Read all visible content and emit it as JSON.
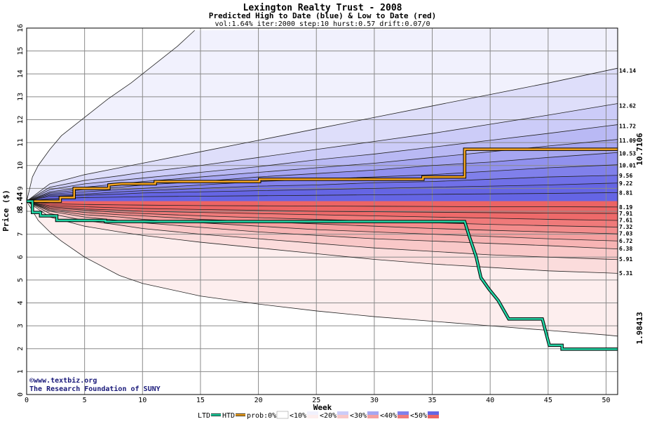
{
  "chart_data": {
    "type": "area",
    "title": "Lexington Realty Trust - 2008",
    "subtitle": "Predicted High to Date (blue) &  Low to Date (red)",
    "params": "vol:1.64% iter:2000 step:10 hurst:0.57 drift:0.07/0",
    "xlabel": "Week",
    "ylabel": "Price ($)",
    "xlim": [
      0,
      51
    ],
    "ylim": [
      0,
      16
    ],
    "xticks": [
      0,
      5,
      10,
      15,
      20,
      25,
      30,
      35,
      40,
      45,
      50
    ],
    "yticks": [
      0,
      1,
      2,
      3,
      4,
      5,
      6,
      7,
      8,
      9,
      10,
      11,
      12,
      13,
      14,
      15,
      16
    ],
    "grid": true,
    "start_price": 8.44,
    "start_label": "8.44",
    "weeks": [
      0,
      2,
      5,
      8,
      10,
      15,
      20,
      25,
      30,
      35,
      40,
      45,
      50
    ],
    "high_quantiles": [
      {
        "level": "14.14",
        "values": [
          8.44,
          9.2,
          9.6,
          9.9,
          10.1,
          10.6,
          11.1,
          11.6,
          12.1,
          12.6,
          13.1,
          13.6,
          14.14
        ]
      },
      {
        "level": "12.62",
        "values": [
          8.44,
          9.05,
          9.35,
          9.55,
          9.7,
          10.0,
          10.35,
          10.7,
          11.05,
          11.4,
          11.8,
          12.2,
          12.62
        ]
      },
      {
        "level": "11.72",
        "values": [
          8.44,
          8.95,
          9.2,
          9.35,
          9.45,
          9.7,
          9.95,
          10.25,
          10.5,
          10.8,
          11.1,
          11.4,
          11.72
        ]
      },
      {
        "level": "11.09",
        "values": [
          8.44,
          8.85,
          9.05,
          9.2,
          9.3,
          9.5,
          9.7,
          9.9,
          10.1,
          10.35,
          10.6,
          10.85,
          11.09
        ]
      },
      {
        "level": "10.53",
        "values": [
          8.44,
          8.8,
          8.95,
          9.05,
          9.15,
          9.3,
          9.5,
          9.65,
          9.8,
          10.0,
          10.15,
          10.35,
          10.53
        ]
      },
      {
        "level": "10.01",
        "values": [
          8.44,
          8.75,
          8.85,
          8.95,
          9.0,
          9.15,
          9.3,
          9.4,
          9.5,
          9.6,
          9.75,
          9.9,
          10.01
        ]
      },
      {
        "level": "9.56",
        "values": [
          8.44,
          8.7,
          8.75,
          8.85,
          8.9,
          9.0,
          9.1,
          9.15,
          9.25,
          9.3,
          9.4,
          9.5,
          9.56
        ]
      },
      {
        "level": "9.22",
        "values": [
          8.44,
          8.65,
          8.7,
          8.75,
          8.8,
          8.85,
          8.9,
          8.95,
          9.0,
          9.05,
          9.1,
          9.15,
          9.22
        ]
      },
      {
        "level": "8.81",
        "values": [
          8.44,
          8.55,
          8.6,
          8.62,
          8.64,
          8.66,
          8.68,
          8.7,
          8.72,
          8.74,
          8.76,
          8.78,
          8.81
        ]
      }
    ],
    "low_quantiles": [
      {
        "level": "8.19",
        "values": [
          8.44,
          8.33,
          8.3,
          8.28,
          8.27,
          8.25,
          8.24,
          8.23,
          8.22,
          8.21,
          8.2,
          8.2,
          8.19
        ]
      },
      {
        "level": "7.91",
        "values": [
          8.44,
          8.25,
          8.2,
          8.15,
          8.12,
          8.08,
          8.04,
          8.0,
          7.98,
          7.96,
          7.94,
          7.92,
          7.91
        ]
      },
      {
        "level": "7.61",
        "values": [
          8.44,
          8.2,
          8.1,
          8.05,
          8.0,
          7.95,
          7.9,
          7.85,
          7.8,
          7.75,
          7.7,
          7.65,
          7.61
        ]
      },
      {
        "level": "7.32",
        "values": [
          8.44,
          8.15,
          8.05,
          7.95,
          7.9,
          7.8,
          7.72,
          7.65,
          7.57,
          7.5,
          7.43,
          7.37,
          7.32
        ]
      },
      {
        "level": "7.03",
        "values": [
          8.44,
          8.1,
          7.95,
          7.85,
          7.8,
          7.65,
          7.55,
          7.45,
          7.35,
          7.25,
          7.17,
          7.1,
          7.03
        ]
      },
      {
        "level": "6.72",
        "values": [
          8.44,
          8.05,
          7.85,
          7.75,
          7.65,
          7.5,
          7.35,
          7.2,
          7.1,
          7.0,
          6.9,
          6.8,
          6.72
        ]
      },
      {
        "level": "6.38",
        "values": [
          8.44,
          8.0,
          7.75,
          7.6,
          7.5,
          7.3,
          7.1,
          6.95,
          6.8,
          6.7,
          6.6,
          6.5,
          6.38
        ]
      },
      {
        "level": "5.91",
        "values": [
          8.44,
          7.9,
          7.6,
          7.4,
          7.25,
          7.0,
          6.8,
          6.6,
          6.4,
          6.25,
          6.1,
          6.0,
          5.91
        ]
      },
      {
        "level": "5.31",
        "values": [
          8.44,
          7.75,
          7.35,
          7.1,
          6.95,
          6.65,
          6.4,
          6.15,
          5.9,
          5.7,
          5.55,
          5.4,
          5.31
        ]
      }
    ],
    "outer_high": {
      "weeks": [
        0,
        0.5,
        1,
        2,
        3,
        5,
        7,
        9,
        11,
        13,
        14.5
      ],
      "values": [
        8.44,
        9.5,
        10.0,
        10.7,
        11.3,
        12.1,
        12.9,
        13.6,
        14.4,
        15.2,
        15.9
      ]
    },
    "outer_low": {
      "weeks": [
        0,
        1,
        2,
        3,
        5,
        8,
        10,
        15,
        20,
        25,
        30,
        35,
        40,
        45,
        50,
        51
      ],
      "values": [
        8.44,
        7.6,
        7.1,
        6.7,
        6.0,
        5.2,
        4.85,
        4.3,
        3.95,
        3.65,
        3.4,
        3.2,
        3.0,
        2.8,
        2.6,
        2.55
      ]
    },
    "series": [
      {
        "name": "HTD",
        "color": "#f5a623",
        "x": [
          0,
          1,
          2,
          2.9,
          2.9,
          3.0,
          4.1,
          4.1,
          7.1,
          7.1,
          8.2,
          11.1,
          11.1,
          20.1,
          20.1,
          34.2,
          34.2,
          37.8,
          37.8,
          51
        ],
        "y": [
          8.44,
          8.44,
          8.44,
          8.44,
          8.6,
          8.6,
          8.6,
          9.0,
          9.0,
          9.15,
          9.2,
          9.2,
          9.3,
          9.3,
          9.4,
          9.4,
          9.5,
          9.5,
          10.71,
          10.71
        ]
      },
      {
        "name": "LTD",
        "color": "#22d4a4",
        "x": [
          0,
          0.5,
          0.5,
          1.2,
          1.2,
          2.6,
          2.6,
          6.8,
          6.8,
          37.8,
          38.2,
          38.8,
          39.2,
          39.2,
          39.9,
          39.9,
          40.7,
          40.7,
          41.6,
          41.6,
          44.5,
          45.1,
          45.1,
          46.2,
          46.2,
          51
        ],
        "y": [
          8.44,
          8.44,
          7.95,
          7.95,
          7.8,
          7.8,
          7.6,
          7.6,
          7.55,
          7.55,
          6.9,
          6.0,
          5.1,
          5.1,
          4.6,
          4.6,
          4.1,
          4.1,
          3.3,
          3.3,
          3.3,
          2.15,
          2.15,
          2.15,
          1.98,
          1.98
        ]
      }
    ],
    "htd_end_label": "10.7106",
    "ltd_end_label": "1.98413",
    "legend_labels": [
      "LTD",
      "HTD",
      "prob:0%",
      "<10%",
      "<20%",
      "<30%",
      "<40%",
      "<50%"
    ],
    "legend_placement": "bottom"
  },
  "credit": {
    "line1": "www.textbiz.org",
    "line2": "The Research Foundation of SUNY"
  },
  "colors": {
    "high_bands": [
      "#f1f1fd",
      "#dedefa",
      "#ccccf8",
      "#b9b9f4",
      "#a6a6f1",
      "#9191ee",
      "#8080eb",
      "#7070e8",
      "#6565e4"
    ],
    "low_bands": [
      "#fdeeee",
      "#fbdcdc",
      "#f9c8c8",
      "#f7b4b4",
      "#f5a0a0",
      "#f38c8c",
      "#f07a7a",
      "#ee6a6a",
      "#ec6464"
    ],
    "htd": "#f5a623",
    "ltd": "#22d4a4",
    "htd_label": "#b8860b",
    "ltd_label": "#0a8a6a"
  }
}
